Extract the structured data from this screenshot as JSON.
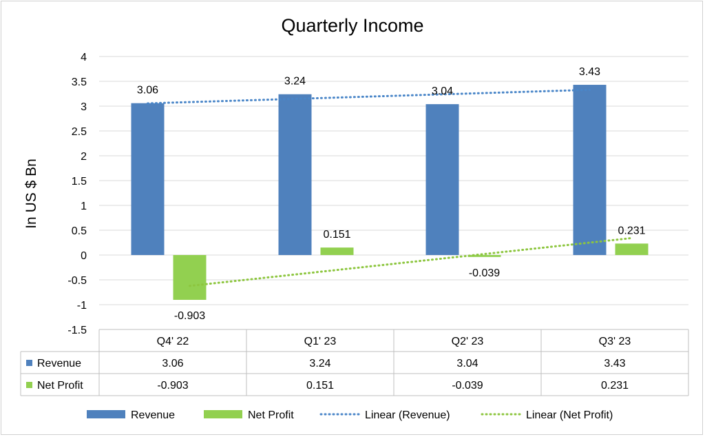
{
  "chart_data": {
    "type": "bar",
    "title": "Quarterly Income",
    "ylabel": "In US $ Bn",
    "xlabel": "",
    "ylim": [
      -1.5,
      4
    ],
    "yticks": [
      4,
      3.5,
      3,
      2.5,
      2,
      1.5,
      1,
      0.5,
      0,
      -0.5,
      -1,
      -1.5
    ],
    "ytick_labels": [
      "4",
      "3.5",
      "3",
      "2.5",
      "2",
      "1.5",
      "1",
      "0.5",
      "0",
      "-0.5",
      "-1",
      "-1.5"
    ],
    "grid": true,
    "categories": [
      "Q4' 22",
      "Q1' 23",
      "Q2' 23",
      "Q3' 23"
    ],
    "series": [
      {
        "name": "Revenue",
        "values": [
          3.06,
          3.24,
          3.04,
          3.43
        ],
        "labels": [
          "3.06",
          "3.24",
          "3.04",
          "3.43"
        ],
        "color": "#4f81bd"
      },
      {
        "name": "Net Profit",
        "values": [
          -0.903,
          0.151,
          -0.039,
          0.231
        ],
        "labels": [
          "-0.903",
          "0.151",
          "-0.039",
          "0.231"
        ],
        "color": "#92d050"
      }
    ],
    "trendlines": [
      {
        "name": "Linear (Revenue)",
        "series": "Revenue",
        "color": "#4a86c8",
        "style": "dotted"
      },
      {
        "name": "Linear (Net Profit)",
        "series": "Net Profit",
        "color": "#8dc63f",
        "style": "dotted"
      }
    ],
    "data_table": true,
    "legend_position": "bottom"
  }
}
